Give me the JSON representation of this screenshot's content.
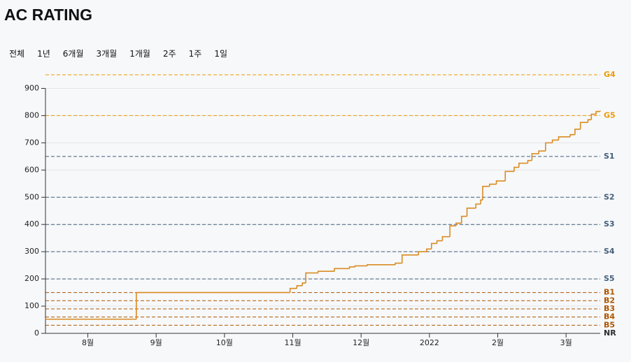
{
  "header": {
    "title": "AC RATING"
  },
  "filters": [
    "전체",
    "1년",
    "6개월",
    "3개월",
    "1개월",
    "2주",
    "1주",
    "1일"
  ],
  "chart_data": {
    "type": "line",
    "step": true,
    "color": "#d98c22",
    "grid": true,
    "x": [
      7.38,
      8.71,
      10.96,
      11.06,
      11.14,
      11.19,
      11.37,
      11.61,
      11.83,
      11.91,
      12.09,
      12.5,
      12.6,
      12.84,
      12.96,
      13.03,
      13.11,
      13.19,
      13.3,
      13.39,
      13.47,
      13.55,
      13.68,
      13.75,
      13.78,
      13.88,
      13.98,
      14.11,
      14.24,
      14.31,
      14.44,
      14.5,
      14.6,
      14.7,
      14.8,
      14.89,
      15.06,
      15.13,
      15.21,
      15.32,
      15.37,
      15.44,
      15.5
    ],
    "values": [
      52,
      150,
      165,
      175,
      185,
      222,
      228,
      238,
      244,
      248,
      252,
      258,
      288,
      300,
      310,
      330,
      340,
      355,
      395,
      405,
      430,
      460,
      475,
      490,
      540,
      548,
      560,
      595,
      610,
      625,
      635,
      660,
      670,
      700,
      710,
      722,
      730,
      750,
      775,
      785,
      805,
      815,
      818
    ],
    "xlim": [
      7.38,
      15.5
    ],
    "xticks": [
      {
        "value": 8,
        "label": "8월"
      },
      {
        "value": 9,
        "label": "9월"
      },
      {
        "value": 10,
        "label": "10월"
      },
      {
        "value": 11,
        "label": "11월"
      },
      {
        "value": 12,
        "label": "12월"
      },
      {
        "value": 13,
        "label": "2022"
      },
      {
        "value": 14,
        "label": "2월"
      },
      {
        "value": 15,
        "label": "3월"
      }
    ],
    "ylim": [
      0,
      950
    ],
    "yticks": [
      0,
      100,
      200,
      300,
      400,
      500,
      600,
      700,
      800,
      900
    ],
    "tiers": [
      {
        "name": "NR",
        "value": 0,
        "color": "#2d2d2d"
      },
      {
        "name": "B5",
        "value": 30,
        "color": "#ad5600"
      },
      {
        "name": "B4",
        "value": 60,
        "color": "#ad5600"
      },
      {
        "name": "B3",
        "value": 90,
        "color": "#ad5600"
      },
      {
        "name": "B2",
        "value": 120,
        "color": "#ad5600"
      },
      {
        "name": "B1",
        "value": 150,
        "color": "#ad5600"
      },
      {
        "name": "S5",
        "value": 200,
        "color": "#435f7a"
      },
      {
        "name": "S4",
        "value": 300,
        "color": "#435f7a"
      },
      {
        "name": "S3",
        "value": 400,
        "color": "#435f7a"
      },
      {
        "name": "S2",
        "value": 500,
        "color": "#435f7a"
      },
      {
        "name": "S1",
        "value": 650,
        "color": "#435f7a"
      },
      {
        "name": "G5",
        "value": 800,
        "color": "#ec9a00"
      },
      {
        "name": "G4",
        "value": 950,
        "color": "#ec9a00"
      }
    ]
  }
}
